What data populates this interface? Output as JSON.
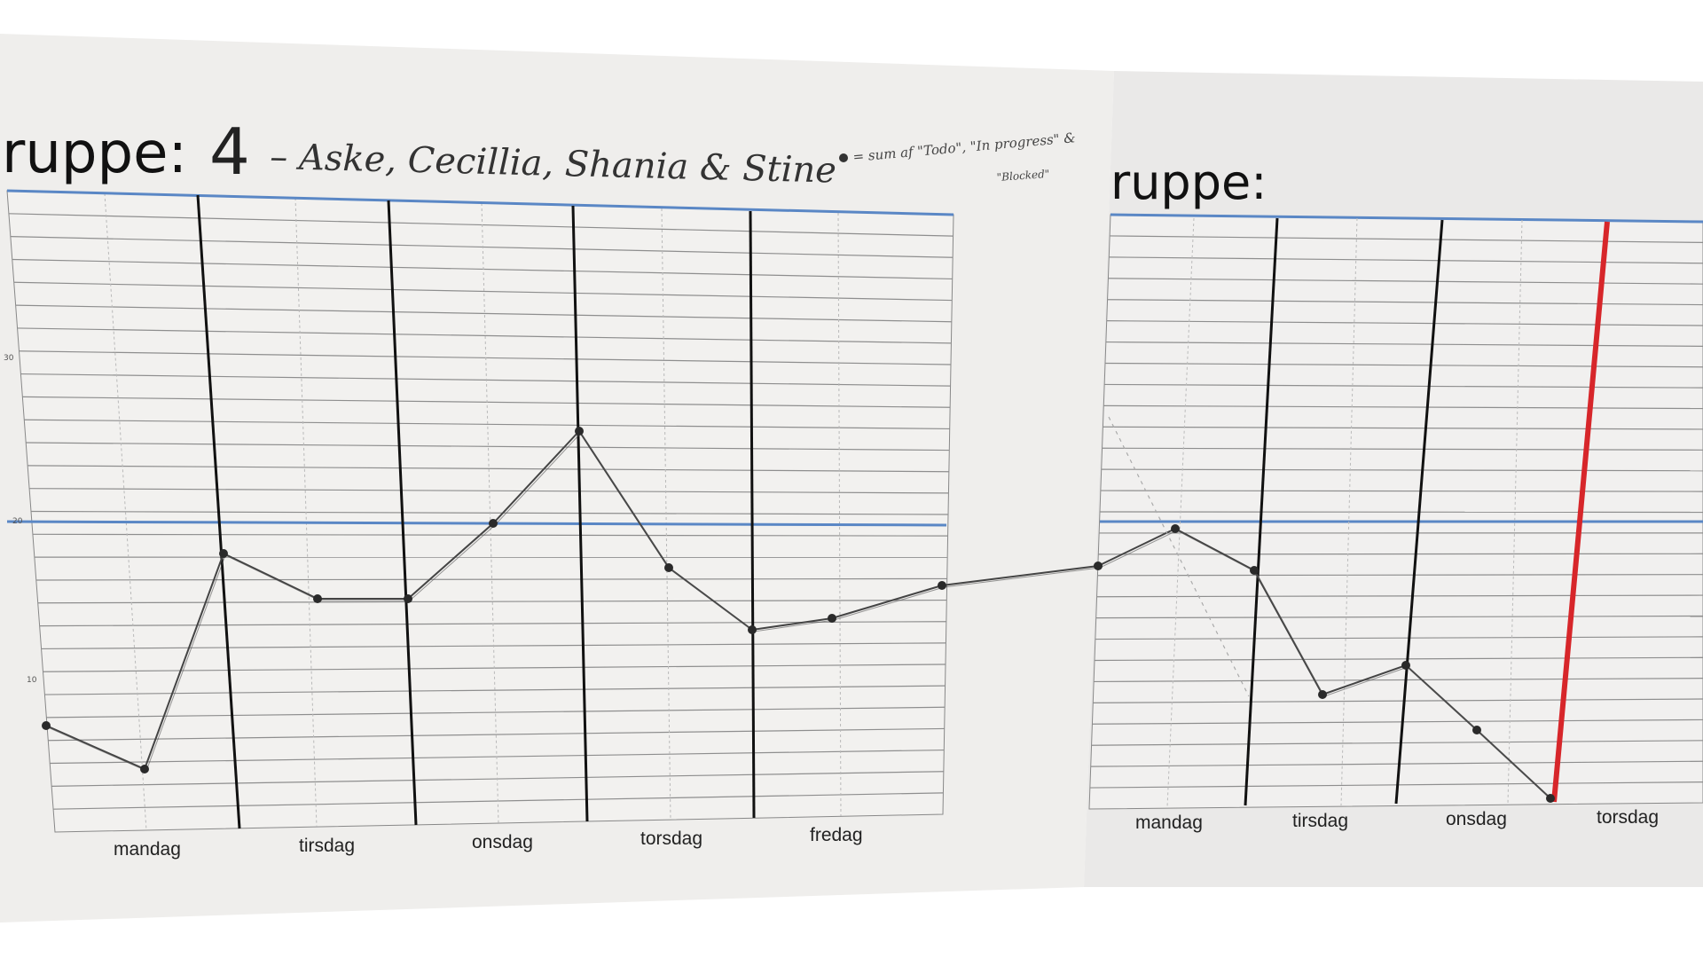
{
  "left_sheet": {
    "title_prefix": "ruppe:",
    "group_number": "4",
    "members": "– Aske, Cecillia, Shania & Stine",
    "legend_line1": "= sum af \"Todo\", \"In progress\" &",
    "legend_line2": "\"Blocked\"",
    "y_ticks": [
      "30",
      "20",
      "10"
    ],
    "days": [
      "mandag",
      "tirsdag",
      "onsdag",
      "torsdag",
      "fredag"
    ]
  },
  "right_sheet": {
    "title_prefix": "ruppe:",
    "days": [
      "mandag",
      "tirsdag",
      "onsdag",
      "torsdag"
    ]
  },
  "colors": {
    "paper": "#f2f1f0",
    "grid_line": "#8a8a8a",
    "axis_blue": "#5a87c5",
    "day_divider": "#111111",
    "deadline_red": "#d7262a",
    "pencil_line": "#444444"
  }
}
